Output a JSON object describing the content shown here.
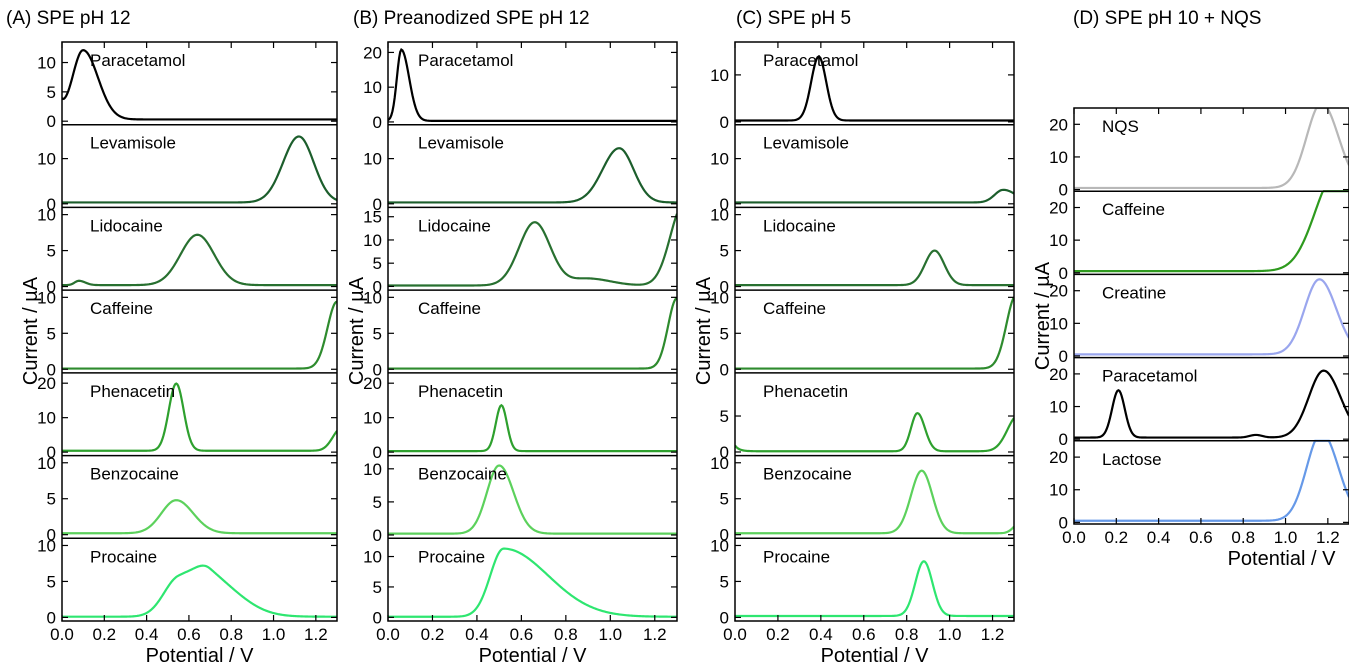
{
  "chart_data": [
    {
      "type": "line",
      "title": "(A) SPE pH 12",
      "xlabel": "Potential / V",
      "ylabel": "Current / µA",
      "xlim": [
        0.0,
        1.3
      ],
      "x_ticks": [
        "0.0",
        "0.2",
        "0.4",
        "0.6",
        "0.8",
        "1.0",
        "1.2"
      ],
      "grid": false,
      "series": [
        {
          "name": "Paracetamol",
          "color": "#000000",
          "ylim": [
            -0.6,
            13.5
          ],
          "yticks": [
            0,
            5,
            10
          ],
          "baseline": 0.3,
          "peaks": [
            {
              "c": 0.1,
              "h": 11.8,
              "wl": 0.05,
              "wr": 0.07
            }
          ],
          "start_bump": 2.0
        },
        {
          "name": "Levamisole",
          "color": "#1c5e2c",
          "ylim": [
            -0.8,
            17.5
          ],
          "yticks": [
            0,
            10
          ],
          "baseline": 0.3,
          "peaks": [
            {
              "c": 1.12,
              "h": 14.6,
              "wl": 0.075,
              "wr": 0.07
            }
          ]
        },
        {
          "name": "Lidocaine",
          "color": "#287030",
          "ylim": [
            -0.5,
            11
          ],
          "yticks": [
            0,
            5,
            10
          ],
          "baseline": 0.2,
          "peaks": [
            {
              "c": 0.64,
              "h": 7.0,
              "wl": 0.08,
              "wr": 0.08
            },
            {
              "c": 0.08,
              "h": 0.6,
              "wl": 0.02,
              "wr": 0.03
            }
          ]
        },
        {
          "name": "Caffeine",
          "color": "#2e8b2e",
          "ylim": [
            -0.5,
            11
          ],
          "yticks": [
            0,
            5,
            10
          ],
          "baseline": 0.1,
          "peaks": [
            {
              "c": 1.3,
              "h": 9.3,
              "wl": 0.045,
              "wr": 0.05
            }
          ]
        },
        {
          "name": "Phenacetin",
          "color": "#2ea02e",
          "ylim": [
            -1.0,
            23
          ],
          "yticks": [
            0,
            10,
            20
          ],
          "baseline": 0.4,
          "peaks": [
            {
              "c": 0.54,
              "h": 19.5,
              "wl": 0.035,
              "wr": 0.035
            },
            {
              "c": 1.32,
              "h": 6.5,
              "wl": 0.04,
              "wr": 0.04
            }
          ]
        },
        {
          "name": "Benzocaine",
          "color": "#5cd15c",
          "ylim": [
            -0.5,
            11
          ],
          "yticks": [
            0,
            5,
            10
          ],
          "baseline": 0.2,
          "peaks": [
            {
              "c": 0.54,
              "h": 4.6,
              "wl": 0.07,
              "wr": 0.08
            }
          ]
        },
        {
          "name": "Procaine",
          "color": "#2ee670",
          "ylim": [
            -0.5,
            11
          ],
          "yticks": [
            0,
            5,
            10
          ],
          "baseline": 0.1,
          "peaks": [
            {
              "c": 0.55,
              "h": 5.2,
              "wl": 0.07,
              "wr": 0.1
            },
            {
              "c": 0.7,
              "h": 5.0,
              "wl": 0.07,
              "wr": 0.14
            }
          ]
        }
      ]
    },
    {
      "type": "line",
      "title": "(B) Preanodized SPE pH 12",
      "xlabel": "Potential / V",
      "ylabel": "Current / µA",
      "xlim": [
        0.0,
        1.3
      ],
      "x_ticks": [
        "0.0",
        "0.2",
        "0.4",
        "0.6",
        "0.8",
        "1.0",
        "1.2"
      ],
      "grid": false,
      "series": [
        {
          "name": "Paracetamol",
          "color": "#000000",
          "ylim": [
            -0.8,
            23
          ],
          "yticks": [
            0,
            10,
            20
          ],
          "baseline": 0.3,
          "peaks": [
            {
              "c": 0.06,
              "h": 20.5,
              "wl": 0.02,
              "wr": 0.035
            }
          ]
        },
        {
          "name": "Levamisole",
          "color": "#1c5e2c",
          "ylim": [
            -0.8,
            17.5
          ],
          "yticks": [
            0,
            10
          ],
          "baseline": 0.3,
          "peaks": [
            {
              "c": 1.04,
              "h": 12.0,
              "wl": 0.075,
              "wr": 0.065
            }
          ]
        },
        {
          "name": "Lidocaine",
          "color": "#287030",
          "ylim": [
            -0.8,
            17
          ],
          "yticks": [
            0,
            5,
            10,
            15
          ],
          "baseline": 0.2,
          "peaks": [
            {
              "c": 0.66,
              "h": 13.6,
              "wl": 0.07,
              "wr": 0.07
            },
            {
              "c": 0.9,
              "h": 1.5,
              "wl": 0.08,
              "wr": 0.1
            },
            {
              "c": 1.33,
              "h": 17.5,
              "wl": 0.06,
              "wr": 0.05
            }
          ]
        },
        {
          "name": "Caffeine",
          "color": "#2e8b2e",
          "ylim": [
            -0.5,
            11
          ],
          "yticks": [
            0,
            5,
            10
          ],
          "baseline": 0.1,
          "peaks": [
            {
              "c": 1.3,
              "h": 9.8,
              "wl": 0.04,
              "wr": 0.05
            }
          ]
        },
        {
          "name": "Phenacetin",
          "color": "#2ea02e",
          "ylim": [
            -1.0,
            23
          ],
          "yticks": [
            0,
            10,
            20
          ],
          "baseline": 0.3,
          "peaks": [
            {
              "c": 0.51,
              "h": 13.3,
              "wl": 0.025,
              "wr": 0.025
            }
          ]
        },
        {
          "name": "Benzocaine",
          "color": "#5cd15c",
          "ylim": [
            -0.5,
            12
          ],
          "yticks": [
            0,
            5,
            10
          ],
          "baseline": 0.2,
          "peaks": [
            {
              "c": 0.5,
              "h": 10.3,
              "wl": 0.055,
              "wr": 0.065
            }
          ]
        },
        {
          "name": "Procaine",
          "color": "#2ee670",
          "ylim": [
            -0.6,
            13
          ],
          "yticks": [
            0,
            5,
            10
          ],
          "baseline": 0.1,
          "peaks": [
            {
              "c": 0.52,
              "h": 11.2,
              "wl": 0.06,
              "wr": 0.2
            }
          ]
        }
      ]
    },
    {
      "type": "line",
      "title": "(C) SPE pH 5",
      "xlabel": "Potential / V",
      "ylabel": "Current / µA",
      "xlim": [
        0.0,
        1.3
      ],
      "x_ticks": [
        "0.0",
        "0.2",
        "0.4",
        "0.6",
        "0.8",
        "1.0",
        "1.2"
      ],
      "grid": false,
      "series": [
        {
          "name": "Paracetamol",
          "color": "#000000",
          "ylim": [
            -0.6,
            17
          ],
          "yticks": [
            0,
            10
          ],
          "baseline": 0.3,
          "peaks": [
            {
              "c": 0.39,
              "h": 13.6,
              "wl": 0.035,
              "wr": 0.035
            }
          ]
        },
        {
          "name": "Levamisole",
          "color": "#1c5e2c",
          "ylim": [
            -0.8,
            17.5
          ],
          "yticks": [
            0,
            10
          ],
          "baseline": 0.3,
          "peaks": [
            {
              "c": 1.25,
              "h": 2.8,
              "wl": 0.04,
              "wr": 0.06
            }
          ]
        },
        {
          "name": "Lidocaine",
          "color": "#287030",
          "ylim": [
            -0.5,
            11
          ],
          "yticks": [
            0,
            5,
            10
          ],
          "baseline": 0.2,
          "peaks": [
            {
              "c": 0.93,
              "h": 4.8,
              "wl": 0.045,
              "wr": 0.045
            }
          ]
        },
        {
          "name": "Caffeine",
          "color": "#2e8b2e",
          "ylim": [
            -0.5,
            11
          ],
          "yticks": [
            0,
            5,
            10
          ],
          "baseline": 0.1,
          "peaks": [
            {
              "c": 1.31,
              "h": 10.2,
              "wl": 0.045,
              "wr": 0.05
            }
          ]
        },
        {
          "name": "Phenacetin",
          "color": "#2ea02e",
          "ylim": [
            -0.5,
            11
          ],
          "yticks": [
            0,
            5
          ],
          "baseline": 0.1,
          "peaks": [
            {
              "c": 0.85,
              "h": 5.3,
              "wl": 0.03,
              "wr": 0.035
            },
            {
              "c": 1.32,
              "h": 5.0,
              "wl": 0.05,
              "wr": 0.05
            }
          ],
          "start_bump": 0.8
        },
        {
          "name": "Benzocaine",
          "color": "#5cd15c",
          "ylim": [
            -0.5,
            11
          ],
          "yticks": [
            0,
            5,
            10
          ],
          "baseline": 0.2,
          "peaks": [
            {
              "c": 0.87,
              "h": 8.7,
              "wl": 0.05,
              "wr": 0.05
            },
            {
              "c": 1.33,
              "h": 1.5,
              "wl": 0.03,
              "wr": 0.03
            }
          ]
        },
        {
          "name": "Procaine",
          "color": "#2ee670",
          "ylim": [
            -0.5,
            11
          ],
          "yticks": [
            0,
            5,
            10
          ],
          "baseline": 0.2,
          "peaks": [
            {
              "c": 0.88,
              "h": 7.6,
              "wl": 0.04,
              "wr": 0.04
            }
          ]
        }
      ]
    },
    {
      "type": "line",
      "title": "(D) SPE pH 10 + NQS",
      "xlabel": "Potential / V",
      "ylabel": "Current / µA",
      "xlim": [
        0.0,
        1.3
      ],
      "x_ticks": [
        "0.0",
        "0.2",
        "0.4",
        "0.6",
        "0.8",
        "1.0",
        "1.2"
      ],
      "grid": false,
      "series": [
        {
          "name": "NQS",
          "color": "#b8b8b8",
          "ylim": [
            -0.5,
            25
          ],
          "yticks": [
            0,
            10,
            20
          ],
          "baseline": 0.5,
          "peaks": [
            {
              "c": 1.17,
              "h": 26,
              "wl": 0.07,
              "wr": 0.08
            }
          ]
        },
        {
          "name": "Caffeine",
          "color": "#2e9a1e",
          "ylim": [
            -0.5,
            25
          ],
          "yticks": [
            0,
            10,
            20
          ],
          "baseline": 0.5,
          "peaks": [
            {
              "c": 1.24,
              "h": 30,
              "wl": 0.1,
              "wr": 0.1
            }
          ]
        },
        {
          "name": "Creatine",
          "color": "#9aa6ee",
          "ylim": [
            -0.5,
            25
          ],
          "yticks": [
            0,
            10,
            20
          ],
          "baseline": 0.5,
          "peaks": [
            {
              "c": 1.16,
              "h": 23,
              "wl": 0.07,
              "wr": 0.08
            }
          ]
        },
        {
          "name": "Paracetamol",
          "color": "#000000",
          "ylim": [
            -0.5,
            25
          ],
          "yticks": [
            0,
            10,
            20
          ],
          "baseline": 0.5,
          "peaks": [
            {
              "c": 0.21,
              "h": 14.5,
              "wl": 0.03,
              "wr": 0.03
            },
            {
              "c": 0.86,
              "h": 0.8,
              "wl": 0.03,
              "wr": 0.03
            },
            {
              "c": 1.18,
              "h": 20.5,
              "wl": 0.07,
              "wr": 0.08
            }
          ]
        },
        {
          "name": "Lactose",
          "color": "#6699e8",
          "ylim": [
            -0.5,
            25
          ],
          "yticks": [
            0,
            10,
            20
          ],
          "baseline": 0.5,
          "peaks": [
            {
              "c": 1.17,
              "h": 27,
              "wl": 0.07,
              "wr": 0.08
            }
          ]
        }
      ]
    }
  ]
}
